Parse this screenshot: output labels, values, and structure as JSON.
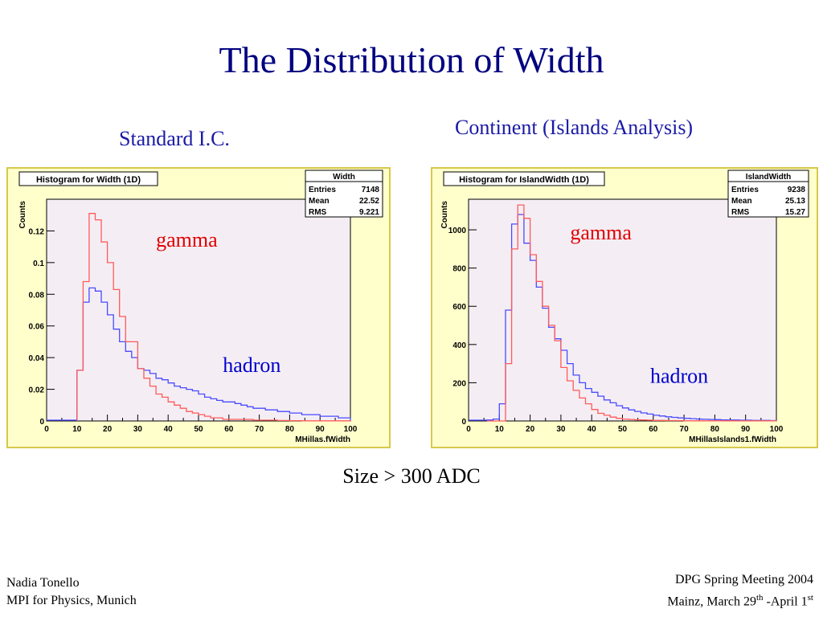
{
  "slide": {
    "title": "The Distribution of Width",
    "subtitle_left": "Standard I.C.",
    "subtitle_right": "Continent (Islands Analysis)",
    "note": "Size > 300 ADC",
    "footer_left": [
      "Nadia Tonello",
      "MPI for Physics, Munich"
    ],
    "footer_right": {
      "line1": "DPG Spring Meeting 2004",
      "line2_pre": "Mainz, March 29",
      "line2_sup1": "th",
      "line2_mid": " -April 1",
      "line2_sup2": "st"
    }
  },
  "colors": {
    "gamma": "#ff5a5a",
    "hadron": "#4a4aff",
    "panel_bg": "#ffffcc",
    "plot_bg": "#f4eef4",
    "title": "#000080",
    "label_gamma": "#e00000",
    "label_hadron": "#0000cc"
  },
  "chart_data": [
    {
      "type": "line",
      "title": "Histogram for Width (1D)",
      "xlabel": "MHillas.fWidth",
      "ylabel": "Counts",
      "xlim": [
        0,
        100
      ],
      "ylim": [
        0,
        0.14
      ],
      "xticks": [
        0,
        10,
        20,
        30,
        40,
        50,
        60,
        70,
        80,
        90,
        100
      ],
      "yticks": [
        0,
        0.02,
        0.04,
        0.06,
        0.08,
        0.1,
        0.12
      ],
      "ytick_labels": [
        "0",
        "0.02",
        "0.04",
        "0.06",
        "0.08",
        "0.1",
        "0.12"
      ],
      "grid": false,
      "bin_width": 2,
      "x": [
        10,
        12,
        14,
        16,
        18,
        20,
        22,
        24,
        26,
        28,
        30,
        32,
        34,
        36,
        38,
        40,
        42,
        44,
        46,
        48,
        50,
        52,
        54,
        56,
        58,
        60,
        62,
        64,
        66,
        68,
        70,
        72,
        74,
        76,
        78,
        80,
        82,
        84,
        86,
        88,
        90,
        92,
        94,
        96,
        98
      ],
      "series": [
        {
          "label": "gamma",
          "values": [
            0.032,
            0.088,
            0.131,
            0.127,
            0.113,
            0.1,
            0.083,
            0.066,
            0.05,
            0.05,
            0.033,
            0.027,
            0.022,
            0.017,
            0.015,
            0.012,
            0.01,
            0.008,
            0.006,
            0.005,
            0.004,
            0.003,
            0.002,
            0.002,
            0.001,
            0.001,
            0.001,
            0.001,
            0.001,
            0.0005,
            0.0005,
            0.0005,
            0.0005,
            0.0003,
            0.0003,
            0.0002,
            0.0002,
            0.0001,
            0.0001,
            0.0001,
            0.0001,
            0.0001,
            0.0001,
            0.0001,
            0.0001
          ]
        },
        {
          "label": "hadron",
          "values": [
            0.032,
            0.075,
            0.084,
            0.082,
            0.075,
            0.067,
            0.058,
            0.05,
            0.044,
            0.04,
            0.033,
            0.032,
            0.03,
            0.027,
            0.026,
            0.024,
            0.022,
            0.021,
            0.02,
            0.019,
            0.017,
            0.015,
            0.014,
            0.013,
            0.012,
            0.012,
            0.011,
            0.01,
            0.009,
            0.008,
            0.008,
            0.007,
            0.007,
            0.006,
            0.006,
            0.005,
            0.005,
            0.004,
            0.004,
            0.004,
            0.003,
            0.003,
            0.003,
            0.002,
            0.002
          ]
        }
      ],
      "stats": {
        "name": "Width",
        "rows": [
          [
            "Entries",
            "7148"
          ],
          [
            "Mean",
            "22.52"
          ],
          [
            "RMS",
            "9.221"
          ]
        ]
      },
      "annotations": [
        {
          "text": "gamma",
          "at": [
            36,
            0.11
          ],
          "color": "#e00000"
        },
        {
          "text": "hadron",
          "at": [
            58,
            0.031
          ],
          "color": "#0000cc"
        }
      ]
    },
    {
      "type": "line",
      "title": "Histogram for IslandWidth (1D)",
      "xlabel": "MHillasIslands1.fWidth",
      "ylabel": "Counts",
      "xlim": [
        0,
        100
      ],
      "ylim": [
        0,
        1160
      ],
      "xticks": [
        0,
        10,
        20,
        30,
        40,
        50,
        60,
        70,
        80,
        90,
        100
      ],
      "yticks": [
        0,
        200,
        400,
        600,
        800,
        1000
      ],
      "ytick_labels": [
        "0",
        "200",
        "400",
        "600",
        "800",
        "1000"
      ],
      "grid": false,
      "bin_width": 2,
      "x": [
        6,
        8,
        10,
        12,
        14,
        16,
        18,
        20,
        22,
        24,
        26,
        28,
        30,
        32,
        34,
        36,
        38,
        40,
        42,
        44,
        46,
        48,
        50,
        52,
        54,
        56,
        58,
        60,
        62,
        64,
        66,
        68,
        70,
        72,
        74,
        76,
        78,
        80,
        82,
        84,
        86,
        88,
        90,
        92,
        94,
        96,
        98
      ],
      "series": [
        {
          "label": "gamma",
          "values": [
            0,
            0,
            0,
            300,
            900,
            1130,
            1060,
            870,
            730,
            600,
            500,
            420,
            280,
            210,
            160,
            120,
            90,
            60,
            40,
            30,
            20,
            14,
            10,
            8,
            6,
            5,
            4,
            3,
            3,
            2,
            2,
            2,
            1,
            1,
            1,
            1,
            1,
            1,
            1,
            1,
            1,
            1,
            1,
            1,
            1,
            1,
            1
          ]
        },
        {
          "label": "hadron",
          "values": [
            5,
            10,
            90,
            580,
            1030,
            1080,
            930,
            840,
            700,
            590,
            490,
            430,
            370,
            300,
            240,
            200,
            170,
            150,
            130,
            110,
            95,
            80,
            68,
            58,
            50,
            42,
            36,
            30,
            26,
            22,
            19,
            16,
            14,
            12,
            10,
            9,
            8,
            7,
            6,
            5,
            5,
            4,
            4,
            3,
            3,
            3,
            2
          ]
        }
      ],
      "stats": {
        "name": "IslandWidth",
        "rows": [
          [
            "Entries",
            "9238"
          ],
          [
            "Mean",
            "25.13"
          ],
          [
            "RMS",
            "15.27"
          ]
        ]
      },
      "annotations": [
        {
          "text": "gamma",
          "at": [
            33,
            950
          ],
          "color": "#e00000"
        },
        {
          "text": "hadron",
          "at": [
            59,
            200
          ],
          "color": "#0000cc"
        }
      ]
    }
  ]
}
